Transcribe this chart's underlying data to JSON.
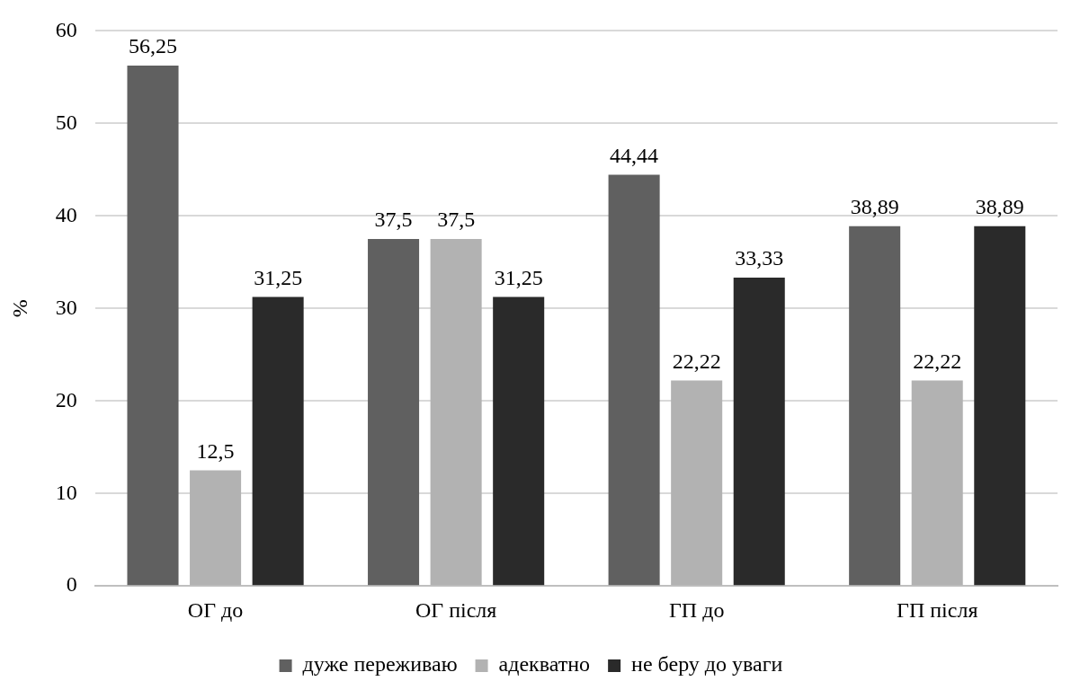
{
  "chart_data": {
    "type": "bar",
    "ylabel": "%",
    "categories": [
      "ОГ до",
      "ОГ після",
      "ГП до",
      "ГП після"
    ],
    "series": [
      {
        "name": "дуже переживаю",
        "color": "#606060",
        "values": [
          56.25,
          37.5,
          44.44,
          38.89
        ],
        "value_labels": [
          "56,25",
          "37,5",
          "44,44",
          "38,89"
        ]
      },
      {
        "name": "адекватно",
        "color": "#b2b2b2",
        "values": [
          12.5,
          37.5,
          22.22,
          22.22
        ],
        "value_labels": [
          "12,5",
          "37,5",
          "22,22",
          "22,22"
        ]
      },
      {
        "name": "не беру до уваги",
        "color": "#2a2a2a",
        "values": [
          31.25,
          31.25,
          33.33,
          38.89
        ],
        "value_labels": [
          "31,25",
          "31,25",
          "33,33",
          "38,89"
        ]
      }
    ],
    "ylim": [
      0,
      60
    ],
    "yticks": [
      0,
      10,
      20,
      30,
      40,
      50,
      60
    ],
    "grid": "y",
    "legend": "bottom"
  }
}
